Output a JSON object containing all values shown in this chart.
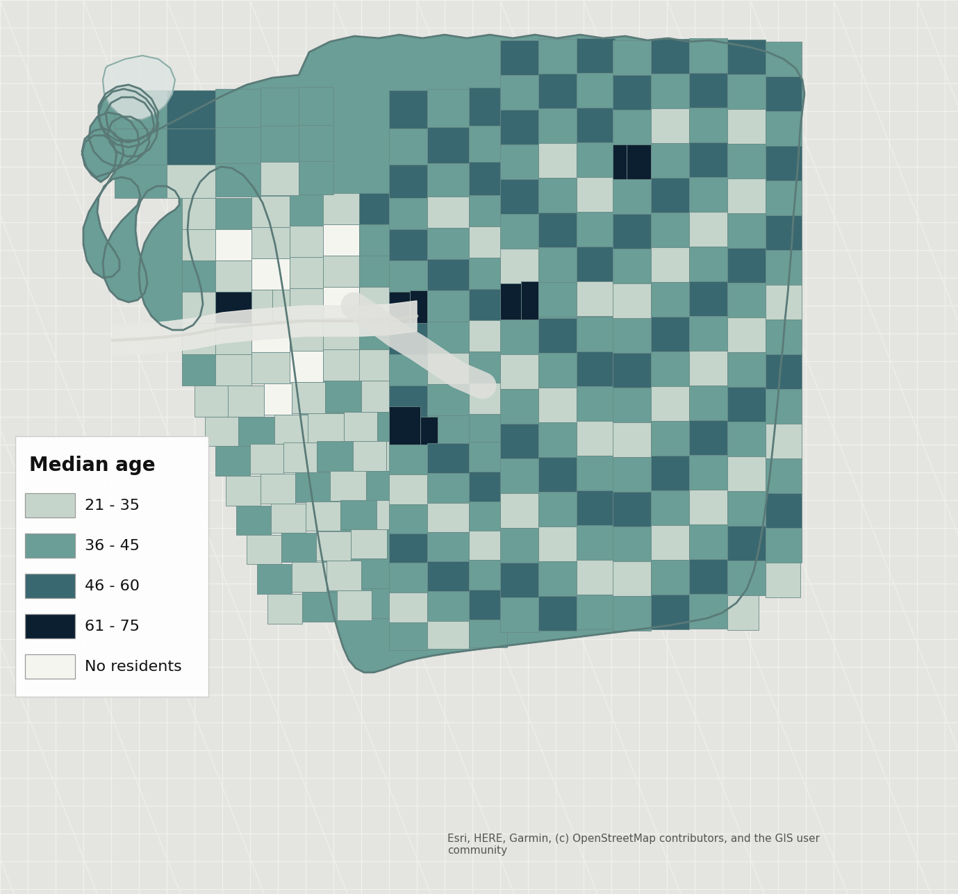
{
  "legend_title": "Median age",
  "legend_items": [
    {
      "label": "21 - 35",
      "color": "#c5d5cb"
    },
    {
      "label": "36 - 45",
      "color": "#6a9e96"
    },
    {
      "label": "46 - 60",
      "color": "#3a6870"
    },
    {
      "label": "61 - 75",
      "color": "#0c1f30"
    },
    {
      "label": "No residents",
      "color": "#f5f5f0"
    }
  ],
  "attribution": "Esri, HERE, Garmin, (c) OpenStreetMap contributors, and the GIS user\ncommunity",
  "bg_color": "#e4e4e0",
  "street_color": "#f2f2ee",
  "legend_title_fontsize": 20,
  "legend_label_fontsize": 16,
  "attribution_fontsize": 11,
  "figsize": [
    13.79,
    12.87
  ],
  "dpi": 100
}
